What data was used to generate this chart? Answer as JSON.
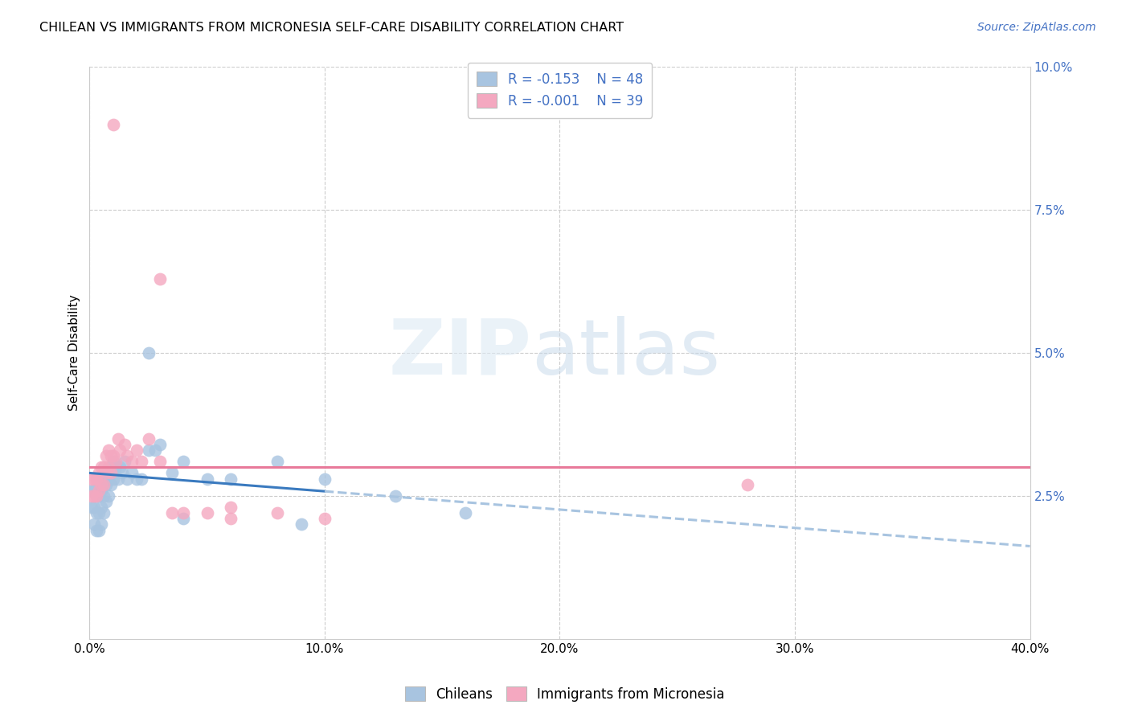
{
  "title": "CHILEAN VS IMMIGRANTS FROM MICRONESIA SELF-CARE DISABILITY CORRELATION CHART",
  "source": "Source: ZipAtlas.com",
  "ylabel": "Self-Care Disability",
  "xlim": [
    0.0,
    0.4
  ],
  "ylim": [
    0.0,
    0.1
  ],
  "xticks": [
    0.0,
    0.1,
    0.2,
    0.3,
    0.4
  ],
  "xticklabels": [
    "0.0%",
    "10.0%",
    "20.0%",
    "30.0%",
    "40.0%"
  ],
  "yticks_right": [
    0.025,
    0.05,
    0.075,
    0.1
  ],
  "yticklabels_right": [
    "2.5%",
    "5.0%",
    "7.5%",
    "10.0%"
  ],
  "legend_r_blue": "-0.153",
  "legend_n_blue": "48",
  "legend_r_pink": "-0.001",
  "legend_n_pink": "39",
  "blue_scatter_color": "#a8c4e0",
  "pink_scatter_color": "#f4a8c0",
  "trendline_blue_solid_color": "#3a7abf",
  "trendline_blue_dashed_color": "#a8c4e0",
  "trendline_pink_color": "#e87a9a",
  "grid_color": "#cccccc",
  "chileans_label": "Chileans",
  "micronesia_label": "Immigrants from Micronesia",
  "blue_x": [
    0.001,
    0.001,
    0.002,
    0.002,
    0.002,
    0.003,
    0.003,
    0.003,
    0.004,
    0.004,
    0.004,
    0.005,
    0.005,
    0.005,
    0.006,
    0.006,
    0.006,
    0.007,
    0.007,
    0.008,
    0.008,
    0.009,
    0.009,
    0.01,
    0.01,
    0.011,
    0.012,
    0.013,
    0.014,
    0.015,
    0.016,
    0.018,
    0.02,
    0.022,
    0.025,
    0.028,
    0.03,
    0.035,
    0.04,
    0.05,
    0.06,
    0.08,
    0.1,
    0.13,
    0.16,
    0.025,
    0.04,
    0.09
  ],
  "blue_y": [
    0.026,
    0.023,
    0.026,
    0.023,
    0.02,
    0.025,
    0.022,
    0.019,
    0.025,
    0.022,
    0.019,
    0.026,
    0.023,
    0.02,
    0.028,
    0.025,
    0.022,
    0.027,
    0.024,
    0.028,
    0.025,
    0.03,
    0.027,
    0.031,
    0.028,
    0.03,
    0.028,
    0.03,
    0.029,
    0.031,
    0.028,
    0.029,
    0.028,
    0.028,
    0.033,
    0.033,
    0.034,
    0.029,
    0.031,
    0.028,
    0.028,
    0.031,
    0.028,
    0.025,
    0.022,
    0.05,
    0.021,
    0.02
  ],
  "pink_x": [
    0.001,
    0.001,
    0.002,
    0.002,
    0.003,
    0.003,
    0.004,
    0.004,
    0.005,
    0.005,
    0.006,
    0.006,
    0.007,
    0.007,
    0.008,
    0.008,
    0.009,
    0.009,
    0.01,
    0.011,
    0.012,
    0.013,
    0.015,
    0.016,
    0.018,
    0.02,
    0.022,
    0.025,
    0.03,
    0.035,
    0.04,
    0.05,
    0.06,
    0.08,
    0.1,
    0.28,
    0.01,
    0.03,
    0.06
  ],
  "pink_y": [
    0.028,
    0.025,
    0.028,
    0.025,
    0.028,
    0.025,
    0.029,
    0.026,
    0.03,
    0.027,
    0.03,
    0.027,
    0.032,
    0.029,
    0.033,
    0.03,
    0.032,
    0.029,
    0.032,
    0.031,
    0.035,
    0.033,
    0.034,
    0.032,
    0.031,
    0.033,
    0.031,
    0.035,
    0.031,
    0.022,
    0.022,
    0.022,
    0.023,
    0.022,
    0.021,
    0.027,
    0.09,
    0.063,
    0.021
  ]
}
